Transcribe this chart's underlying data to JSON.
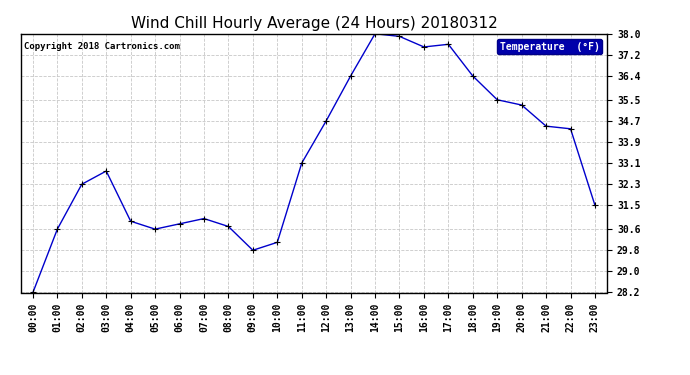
{
  "title": "Wind Chill Hourly Average (24 Hours) 20180312",
  "copyright_text": "Copyright 2018 Cartronics.com",
  "legend_label": "Temperature  (°F)",
  "hours": [
    "00:00",
    "01:00",
    "02:00",
    "03:00",
    "04:00",
    "05:00",
    "06:00",
    "07:00",
    "08:00",
    "09:00",
    "10:00",
    "11:00",
    "12:00",
    "13:00",
    "14:00",
    "15:00",
    "16:00",
    "17:00",
    "18:00",
    "19:00",
    "20:00",
    "21:00",
    "22:00",
    "23:00"
  ],
  "values": [
    28.2,
    30.6,
    32.3,
    32.8,
    30.9,
    30.6,
    30.8,
    31.0,
    30.7,
    29.8,
    30.1,
    33.1,
    34.7,
    36.4,
    38.0,
    37.9,
    37.5,
    37.6,
    36.4,
    35.5,
    35.3,
    34.5,
    34.4,
    31.5
  ],
  "line_color": "#0000cc",
  "marker_color": "#000000",
  "background_color": "#ffffff",
  "grid_color": "#c8c8c8",
  "ylim_min": 28.2,
  "ylim_max": 38.0,
  "yticks": [
    28.2,
    29.0,
    29.8,
    30.6,
    31.5,
    32.3,
    33.1,
    33.9,
    34.7,
    35.5,
    36.4,
    37.2,
    38.0
  ],
  "title_fontsize": 11,
  "axis_fontsize": 7,
  "legend_bg": "#0000aa",
  "legend_text_color": "#ffffff"
}
